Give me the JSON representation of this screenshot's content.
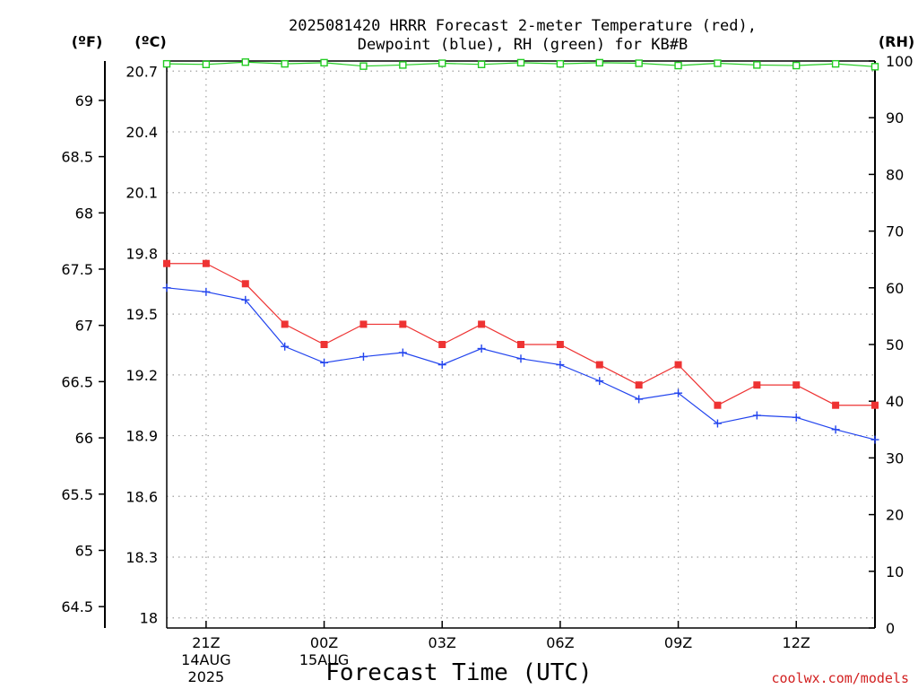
{
  "title_lines": [
    "2025081420 HRRR Forecast 2-meter Temperature (red),",
    "Dewpoint (blue), RH (green) for KB#B"
  ],
  "unit_labels": {
    "fahrenheit": "(ºF)",
    "celsius": "(ºC)",
    "rh": "(RH)"
  },
  "x_axis_title": "Forecast Time (UTC)",
  "credit": "coolwx.com/models",
  "colors": {
    "temperature": "#ee3333",
    "dewpoint": "#2244ee",
    "rh": "#22cc22",
    "grid": "#a0a0a0"
  },
  "chart_data": {
    "type": "line",
    "title": "2025081420 HRRR Forecast 2-meter Temperature (red), Dewpoint (blue), RH (green) for KB#B",
    "xlabel": "Forecast Time (UTC)",
    "x": [
      "20Z",
      "21Z",
      "22Z",
      "23Z",
      "00Z",
      "01Z",
      "02Z",
      "03Z",
      "04Z",
      "05Z",
      "06Z",
      "07Z",
      "08Z",
      "09Z",
      "10Z",
      "11Z",
      "12Z",
      "13Z",
      "14Z"
    ],
    "x_ticks": [
      {
        "index": 1,
        "label": "21Z",
        "date": "14AUG",
        "year": "2025"
      },
      {
        "index": 4,
        "label": "00Z",
        "date": "15AUG",
        "year": ""
      },
      {
        "index": 7,
        "label": "03Z",
        "date": "",
        "year": ""
      },
      {
        "index": 10,
        "label": "06Z",
        "date": "",
        "year": ""
      },
      {
        "index": 13,
        "label": "09Z",
        "date": "",
        "year": ""
      },
      {
        "index": 16,
        "label": "12Z",
        "date": "",
        "year": ""
      }
    ],
    "y_celsius": {
      "ylim": [
        17.95,
        20.75
      ],
      "ticks": [
        "18",
        "18.3",
        "18.6",
        "18.9",
        "19.2",
        "19.5",
        "19.8",
        "20.1",
        "20.4",
        "20.7"
      ]
    },
    "y_fahrenheit": {
      "ticks": [
        "64.5",
        "65",
        "65.5",
        "66",
        "66.5",
        "67",
        "67.5",
        "68",
        "68.5",
        "69"
      ]
    },
    "y_rh": {
      "ylim": [
        0,
        100
      ],
      "ticks": [
        "0",
        "10",
        "20",
        "30",
        "40",
        "50",
        "60",
        "70",
        "80",
        "90",
        "100"
      ]
    },
    "grid": true,
    "series": [
      {
        "name": "Temperature",
        "axis": "celsius",
        "marker": "square",
        "values": [
          19.75,
          19.75,
          19.65,
          19.45,
          19.35,
          19.45,
          19.45,
          19.35,
          19.45,
          19.35,
          19.35,
          19.25,
          19.15,
          19.25,
          19.05,
          19.15,
          19.15,
          19.05,
          19.05
        ]
      },
      {
        "name": "Dewpoint",
        "axis": "celsius",
        "marker": "plus",
        "values": [
          19.63,
          19.61,
          19.57,
          19.34,
          19.26,
          19.29,
          19.31,
          19.25,
          19.33,
          19.28,
          19.25,
          19.17,
          19.08,
          19.11,
          18.96,
          19.0,
          18.99,
          18.93,
          18.88
        ]
      },
      {
        "name": "RH",
        "axis": "rh",
        "marker": "open-square",
        "values": [
          99.5,
          99.4,
          99.8,
          99.5,
          99.7,
          99.1,
          99.3,
          99.6,
          99.4,
          99.7,
          99.5,
          99.7,
          99.6,
          99.2,
          99.6,
          99.3,
          99.2,
          99.5,
          99.0
        ]
      }
    ]
  }
}
